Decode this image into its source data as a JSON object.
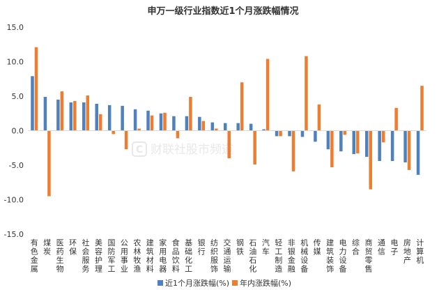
{
  "chart_data": {
    "type": "bar",
    "title": "申万一级行业指数近1个月涨跌幅情况",
    "xlabel": "",
    "ylabel": "",
    "ylim": [
      -15,
      15
    ],
    "y_ticks": [
      "15.0",
      "10.0",
      "5.0",
      "0.0",
      "-5.0",
      "-10.0",
      "-15.0"
    ],
    "y_tick_values": [
      15,
      10,
      5,
      0,
      -5,
      -10,
      -15
    ],
    "categories": [
      "有色金属",
      "煤炭",
      "医药生物",
      "环保",
      "社会服务",
      "美容护理",
      "国防军工",
      "公用事业",
      "农林牧渔",
      "建筑材料",
      "家用电器",
      "食品饮料",
      "基础化工",
      "银行",
      "纺织服饰",
      "交通运输",
      "钢铁",
      "石油石化",
      "汽车",
      "轻工制造",
      "非银金融",
      "机械设备",
      "传媒",
      "建筑装饰",
      "电力设备",
      "综合",
      "商贸零售",
      "通信",
      "电子",
      "房地产",
      "计算机"
    ],
    "series": [
      {
        "name": "近1个月涨跌幅(%)",
        "color": "#4f81bd",
        "values": [
          7.9,
          4.9,
          4.5,
          4.1,
          4.1,
          3.9,
          3.7,
          3.6,
          3.1,
          2.9,
          2.5,
          2.1,
          2.1,
          2.0,
          1.2,
          1.1,
          1.1,
          1.0,
          0.2,
          -0.8,
          -0.8,
          -0.9,
          -1.6,
          -2.7,
          -3.0,
          -3.4,
          -3.8,
          -4.4,
          -4.4,
          -4.6,
          -6.4
        ]
      },
      {
        "name": "年内涨跌幅(%)",
        "color": "#ed7d31",
        "values": [
          12.1,
          -9.5,
          5.7,
          4.3,
          5.1,
          2.4,
          -0.5,
          -2.7,
          0.3,
          2.2,
          2.6,
          -1.1,
          4.9,
          1.4,
          0.3,
          -4.0,
          7.0,
          -4.9,
          10.4,
          -0.8,
          -5.9,
          10.8,
          3.8,
          -5.3,
          -0.6,
          -3.3,
          -8.5,
          -1.7,
          3.3,
          -5.7,
          6.5
        ]
      }
    ],
    "legend_position": "bottom",
    "grid": false
  },
  "watermark": {
    "icon": "C",
    "text": "财联社股市频道"
  }
}
